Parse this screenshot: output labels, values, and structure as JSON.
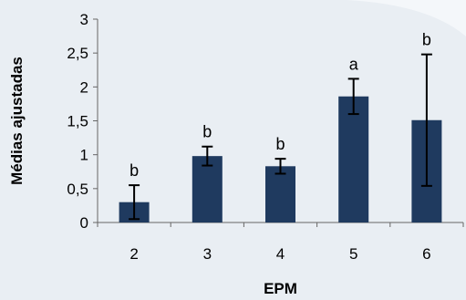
{
  "chart_data": {
    "type": "bar",
    "categories": [
      "2",
      "3",
      "4",
      "5",
      "6"
    ],
    "values": [
      0.3,
      0.98,
      0.83,
      1.86,
      1.51
    ],
    "errors": [
      0.25,
      0.14,
      0.11,
      0.26,
      0.97
    ],
    "significance_labels": [
      "b",
      "b",
      "b",
      "a",
      "b"
    ],
    "title": "",
    "xlabel": "EPM",
    "ylabel": "Médias ajustadas",
    "ylim": [
      0,
      3
    ],
    "yticks": [
      "0",
      "0,5",
      "1",
      "1,5",
      "2",
      "2,5",
      "3"
    ],
    "ytick_values": [
      0,
      0.5,
      1,
      1.5,
      2,
      2.5,
      3
    ],
    "grid": false,
    "legend": "none",
    "bar_color": "#1f3a5f",
    "error_bar_color": "#000000"
  }
}
